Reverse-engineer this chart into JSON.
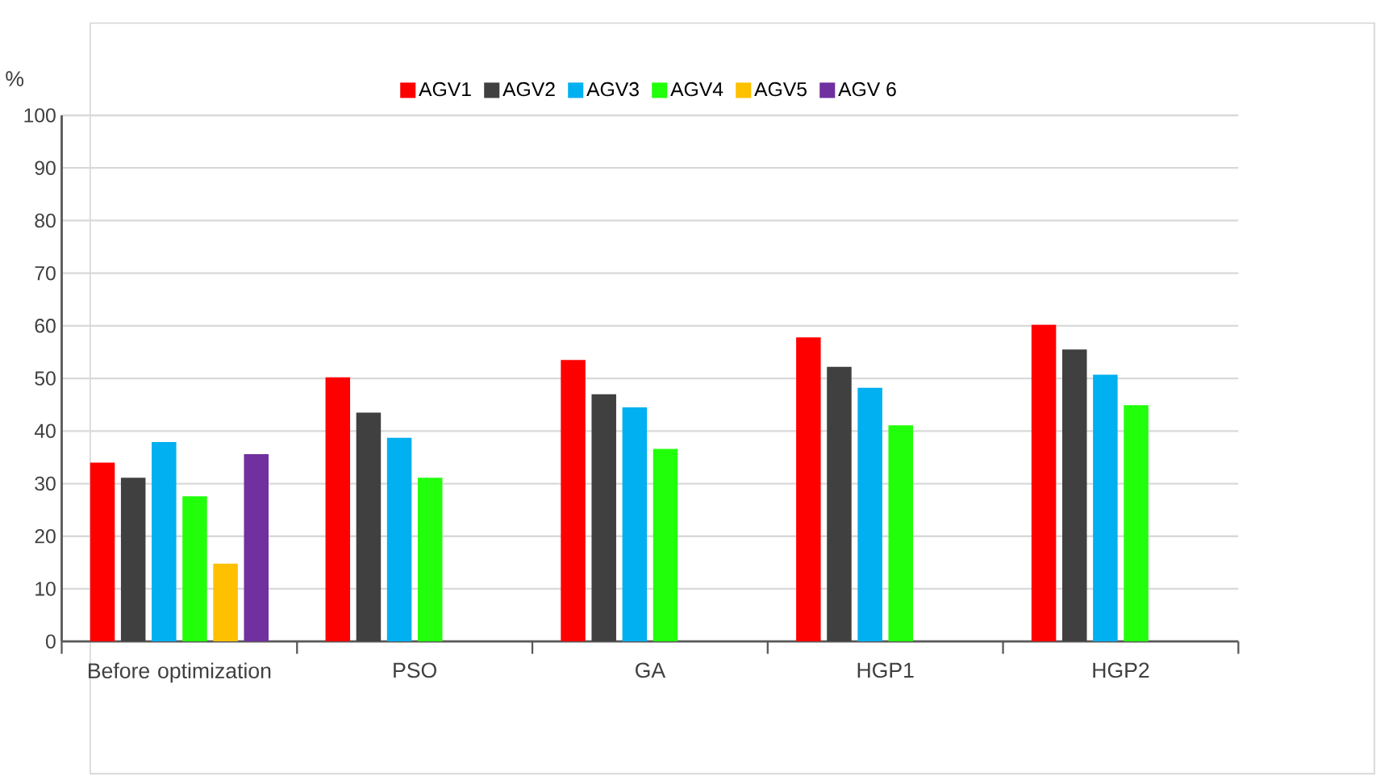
{
  "chart_data": {
    "type": "bar",
    "ylabel": "%",
    "categories": [
      "Before optimization",
      "PSO",
      "GA",
      "HGP1",
      "HGP2"
    ],
    "series": [
      {
        "name": "AGV1",
        "color": "#ff0000",
        "values": [
          34.0,
          50.2,
          53.5,
          57.8,
          60.2
        ]
      },
      {
        "name": "AGV2",
        "color": "#404040",
        "values": [
          31.1,
          43.5,
          47.0,
          52.2,
          55.5
        ]
      },
      {
        "name": "AGV3",
        "color": "#00b0f0",
        "values": [
          37.9,
          38.7,
          44.5,
          48.2,
          50.7
        ]
      },
      {
        "name": "AGV4",
        "color": "#22ff0a",
        "values": [
          27.6,
          31.1,
          36.6,
          41.1,
          44.9
        ]
      },
      {
        "name": "AGV5",
        "color": "#ffc000",
        "values": [
          14.8,
          null,
          null,
          null,
          null
        ]
      },
      {
        "name": "AGV 6",
        "color": "#7030a0",
        "values": [
          35.6,
          null,
          null,
          null,
          null
        ]
      }
    ],
    "ylim": [
      0,
      100
    ],
    "yticks": [
      0,
      10,
      20,
      30,
      40,
      50,
      60,
      70,
      80,
      90,
      100
    ],
    "grid": "y",
    "legend": "top"
  }
}
